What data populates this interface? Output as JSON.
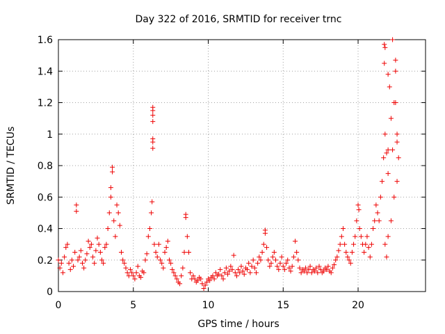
{
  "chart_data": {
    "type": "scatter",
    "title": "Day 322 of 2016, SRMTID for receiver trnc",
    "xlabel": "GPS time / hours",
    "ylabel": "SRMTID / TECUs",
    "xlim": [
      0,
      24.5
    ],
    "ylim": [
      0,
      1.6
    ],
    "xticks": [
      0,
      5,
      10,
      15,
      20
    ],
    "xtick_labels": [
      "0",
      "5",
      "10",
      "15",
      "20"
    ],
    "yticks": [
      0,
      0.2,
      0.4,
      0.6,
      0.8,
      1,
      1.2,
      1.4,
      1.6
    ],
    "ytick_labels": [
      "0",
      "0.2",
      "0.4",
      "0.6",
      "0.8",
      "1",
      "1.2",
      "1.4",
      "1.6"
    ],
    "grid": true,
    "marker": "plus",
    "color": "#ee0000",
    "series": [
      {
        "name": "SRMTID",
        "points": [
          [
            0.0,
            0.2
          ],
          [
            0.1,
            0.15
          ],
          [
            0.2,
            0.18
          ],
          [
            0.3,
            0.12
          ],
          [
            0.4,
            0.22
          ],
          [
            0.5,
            0.28
          ],
          [
            0.6,
            0.3
          ],
          [
            0.7,
            0.18
          ],
          [
            0.8,
            0.14
          ],
          [
            0.9,
            0.2
          ],
          [
            1.0,
            0.16
          ],
          [
            1.1,
            0.25
          ],
          [
            1.2,
            0.55
          ],
          [
            1.2,
            0.51
          ],
          [
            1.3,
            0.2
          ],
          [
            1.4,
            0.22
          ],
          [
            1.5,
            0.26
          ],
          [
            1.6,
            0.18
          ],
          [
            1.7,
            0.15
          ],
          [
            1.8,
            0.2
          ],
          [
            1.9,
            0.24
          ],
          [
            2.0,
            0.32
          ],
          [
            2.1,
            0.28
          ],
          [
            2.2,
            0.3
          ],
          [
            2.3,
            0.22
          ],
          [
            2.4,
            0.18
          ],
          [
            2.5,
            0.26
          ],
          [
            2.6,
            0.34
          ],
          [
            2.7,
            0.3
          ],
          [
            2.8,
            0.25
          ],
          [
            2.9,
            0.2
          ],
          [
            3.0,
            0.18
          ],
          [
            3.1,
            0.28
          ],
          [
            3.2,
            0.3
          ],
          [
            3.3,
            0.4
          ],
          [
            3.4,
            0.5
          ],
          [
            3.5,
            0.6
          ],
          [
            3.5,
            0.66
          ],
          [
            3.6,
            0.79
          ],
          [
            3.6,
            0.76
          ],
          [
            3.7,
            0.45
          ],
          [
            3.8,
            0.35
          ],
          [
            3.9,
            0.55
          ],
          [
            4.0,
            0.5
          ],
          [
            4.1,
            0.42
          ],
          [
            4.2,
            0.25
          ],
          [
            4.3,
            0.2
          ],
          [
            4.4,
            0.18
          ],
          [
            4.5,
            0.15
          ],
          [
            4.6,
            0.12
          ],
          [
            4.7,
            0.1
          ],
          [
            4.8,
            0.14
          ],
          [
            4.9,
            0.12
          ],
          [
            5.0,
            0.1
          ],
          [
            5.1,
            0.08
          ],
          [
            5.2,
            0.12
          ],
          [
            5.3,
            0.16
          ],
          [
            5.4,
            0.1
          ],
          [
            5.5,
            0.09
          ],
          [
            5.6,
            0.13
          ],
          [
            5.7,
            0.12
          ],
          [
            5.8,
            0.2
          ],
          [
            5.9,
            0.24
          ],
          [
            6.0,
            0.35
          ],
          [
            6.1,
            0.4
          ],
          [
            6.2,
            0.5
          ],
          [
            6.25,
            0.57
          ],
          [
            6.3,
            1.17
          ],
          [
            6.3,
            1.15
          ],
          [
            6.3,
            1.12
          ],
          [
            6.3,
            1.08
          ],
          [
            6.3,
            0.97
          ],
          [
            6.3,
            0.95
          ],
          [
            6.3,
            0.91
          ],
          [
            6.4,
            0.3
          ],
          [
            6.5,
            0.25
          ],
          [
            6.6,
            0.22
          ],
          [
            6.7,
            0.3
          ],
          [
            6.8,
            0.2
          ],
          [
            6.9,
            0.18
          ],
          [
            7.0,
            0.15
          ],
          [
            7.1,
            0.25
          ],
          [
            7.2,
            0.28
          ],
          [
            7.3,
            0.32
          ],
          [
            7.4,
            0.2
          ],
          [
            7.5,
            0.18
          ],
          [
            7.6,
            0.14
          ],
          [
            7.7,
            0.12
          ],
          [
            7.8,
            0.1
          ],
          [
            7.9,
            0.08
          ],
          [
            8.0,
            0.06
          ],
          [
            8.1,
            0.05
          ],
          [
            8.2,
            0.1
          ],
          [
            8.3,
            0.15
          ],
          [
            8.4,
            0.25
          ],
          [
            8.5,
            0.49
          ],
          [
            8.5,
            0.47
          ],
          [
            8.6,
            0.35
          ],
          [
            8.7,
            0.25
          ],
          [
            8.8,
            0.12
          ],
          [
            8.9,
            0.08
          ],
          [
            9.0,
            0.1
          ],
          [
            9.1,
            0.08
          ],
          [
            9.2,
            0.06
          ],
          [
            9.3,
            0.07
          ],
          [
            9.4,
            0.09
          ],
          [
            9.5,
            0.08
          ],
          [
            9.6,
            0.05
          ],
          [
            9.7,
            0.02
          ],
          [
            9.8,
            0.04
          ],
          [
            9.9,
            0.06
          ],
          [
            10.0,
            0.08
          ],
          [
            10.1,
            0.07
          ],
          [
            10.2,
            0.09
          ],
          [
            10.3,
            0.1
          ],
          [
            10.4,
            0.08
          ],
          [
            10.5,
            0.12
          ],
          [
            10.6,
            0.1
          ],
          [
            10.7,
            0.11
          ],
          [
            10.8,
            0.14
          ],
          [
            10.9,
            0.1
          ],
          [
            11.0,
            0.08
          ],
          [
            11.1,
            0.12
          ],
          [
            11.2,
            0.15
          ],
          [
            11.3,
            0.11
          ],
          [
            11.4,
            0.13
          ],
          [
            11.5,
            0.16
          ],
          [
            11.6,
            0.14
          ],
          [
            11.7,
            0.23
          ],
          [
            11.8,
            0.12
          ],
          [
            11.9,
            0.1
          ],
          [
            12.0,
            0.14
          ],
          [
            12.1,
            0.12
          ],
          [
            12.2,
            0.16
          ],
          [
            12.3,
            0.13
          ],
          [
            12.4,
            0.11
          ],
          [
            12.5,
            0.15
          ],
          [
            12.6,
            0.14
          ],
          [
            12.7,
            0.18
          ],
          [
            12.8,
            0.12
          ],
          [
            12.9,
            0.16
          ],
          [
            13.0,
            0.2
          ],
          [
            13.1,
            0.15
          ],
          [
            13.2,
            0.12
          ],
          [
            13.3,
            0.18
          ],
          [
            13.4,
            0.22
          ],
          [
            13.5,
            0.2
          ],
          [
            13.6,
            0.25
          ],
          [
            13.7,
            0.3
          ],
          [
            13.8,
            0.39
          ],
          [
            13.8,
            0.37
          ],
          [
            13.9,
            0.28
          ],
          [
            14.0,
            0.2
          ],
          [
            14.1,
            0.16
          ],
          [
            14.2,
            0.18
          ],
          [
            14.3,
            0.22
          ],
          [
            14.4,
            0.25
          ],
          [
            14.5,
            0.2
          ],
          [
            14.6,
            0.16
          ],
          [
            14.7,
            0.14
          ],
          [
            14.8,
            0.18
          ],
          [
            14.9,
            0.22
          ],
          [
            15.0,
            0.16
          ],
          [
            15.1,
            0.14
          ],
          [
            15.2,
            0.18
          ],
          [
            15.3,
            0.2
          ],
          [
            15.4,
            0.15
          ],
          [
            15.5,
            0.13
          ],
          [
            15.6,
            0.16
          ],
          [
            15.7,
            0.22
          ],
          [
            15.8,
            0.32
          ],
          [
            15.9,
            0.25
          ],
          [
            16.0,
            0.2
          ],
          [
            16.1,
            0.15
          ],
          [
            16.2,
            0.12
          ],
          [
            16.3,
            0.14
          ],
          [
            16.4,
            0.13
          ],
          [
            16.5,
            0.15
          ],
          [
            16.6,
            0.12
          ],
          [
            16.7,
            0.14
          ],
          [
            16.8,
            0.16
          ],
          [
            16.9,
            0.12
          ],
          [
            17.0,
            0.14
          ],
          [
            17.1,
            0.13
          ],
          [
            17.2,
            0.15
          ],
          [
            17.3,
            0.12
          ],
          [
            17.4,
            0.16
          ],
          [
            17.5,
            0.14
          ],
          [
            17.6,
            0.12
          ],
          [
            17.7,
            0.13
          ],
          [
            17.8,
            0.15
          ],
          [
            17.9,
            0.14
          ],
          [
            18.0,
            0.16
          ],
          [
            18.1,
            0.13
          ],
          [
            18.2,
            0.12
          ],
          [
            18.3,
            0.15
          ],
          [
            18.4,
            0.17
          ],
          [
            18.5,
            0.2
          ],
          [
            18.6,
            0.22
          ],
          [
            18.7,
            0.26
          ],
          [
            18.8,
            0.3
          ],
          [
            18.9,
            0.35
          ],
          [
            19.0,
            0.4
          ],
          [
            19.1,
            0.3
          ],
          [
            19.2,
            0.25
          ],
          [
            19.3,
            0.22
          ],
          [
            19.4,
            0.2
          ],
          [
            19.5,
            0.18
          ],
          [
            19.6,
            0.25
          ],
          [
            19.7,
            0.3
          ],
          [
            19.8,
            0.35
          ],
          [
            19.9,
            0.45
          ],
          [
            20.0,
            0.55
          ],
          [
            20.05,
            0.52
          ],
          [
            20.1,
            0.4
          ],
          [
            20.2,
            0.35
          ],
          [
            20.3,
            0.3
          ],
          [
            20.4,
            0.25
          ],
          [
            20.5,
            0.3
          ],
          [
            20.6,
            0.35
          ],
          [
            20.7,
            0.28
          ],
          [
            20.8,
            0.22
          ],
          [
            20.9,
            0.3
          ],
          [
            21.0,
            0.4
          ],
          [
            21.1,
            0.45
          ],
          [
            21.2,
            0.55
          ],
          [
            21.3,
            0.5
          ],
          [
            21.4,
            0.45
          ],
          [
            21.5,
            0.6
          ],
          [
            21.6,
            0.7
          ],
          [
            21.7,
            0.85
          ],
          [
            21.8,
            1.0
          ],
          [
            21.9,
            0.88
          ],
          [
            22.0,
            0.75
          ],
          [
            22.0,
            0.9
          ],
          [
            22.1,
            1.3
          ],
          [
            22.2,
            1.1
          ],
          [
            22.3,
            0.9
          ],
          [
            22.4,
            1.2
          ],
          [
            22.5,
            1.4
          ],
          [
            22.6,
            1.0
          ],
          [
            22.7,
            0.85
          ],
          [
            21.75,
            1.57
          ],
          [
            21.8,
            1.55
          ],
          [
            21.75,
            1.45
          ],
          [
            22.0,
            1.38
          ],
          [
            22.5,
            1.47
          ],
          [
            22.5,
            1.2
          ],
          [
            22.3,
            1.6
          ],
          [
            22.6,
            0.95
          ],
          [
            21.8,
            0.3
          ],
          [
            21.9,
            0.22
          ],
          [
            22.0,
            0.35
          ],
          [
            22.2,
            0.45
          ],
          [
            22.4,
            0.6
          ],
          [
            22.6,
            0.7
          ]
        ]
      }
    ]
  }
}
